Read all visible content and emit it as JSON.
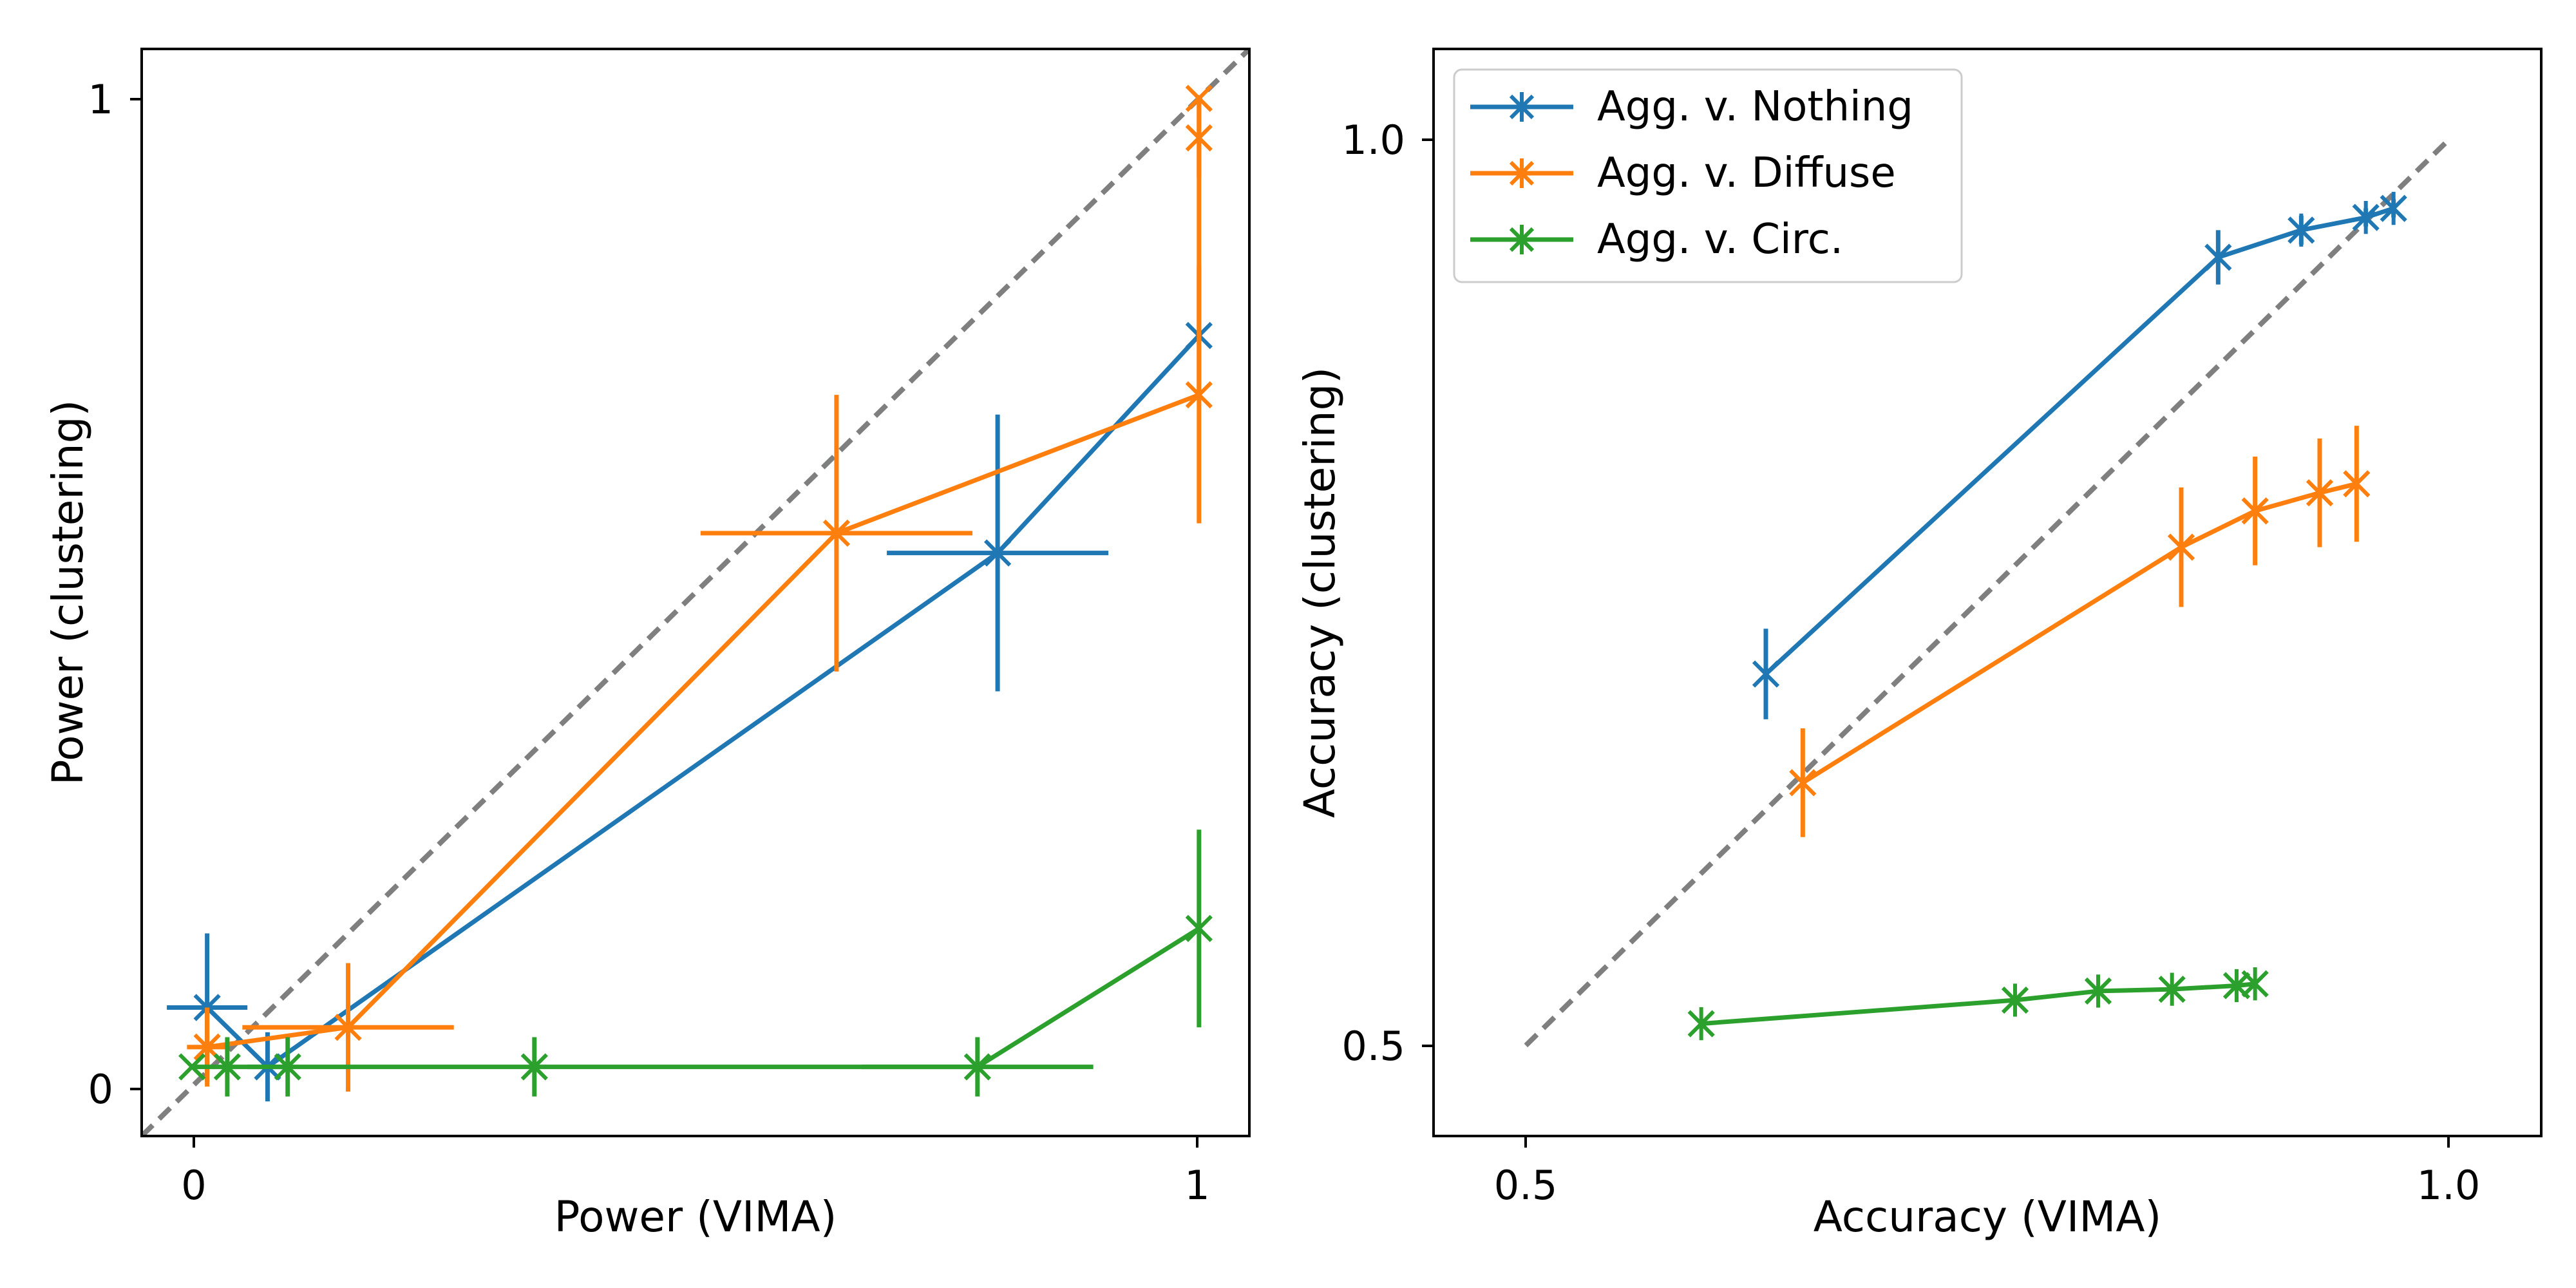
{
  "chart_data": [
    {
      "type": "line",
      "xlabel": "Power (VIMA)",
      "ylabel": "Power (clustering)",
      "xlim": [
        -0.05,
        1.05
      ],
      "ylim": [
        -0.05,
        1.05
      ],
      "xticks": [
        0,
        1
      ],
      "xtick_labels": [
        "0",
        "1"
      ],
      "yticks": [
        0,
        1
      ],
      "ytick_labels": [
        "0",
        "1"
      ],
      "grid": false,
      "reference_line": "y = x (dashed gray)",
      "series": [
        {
          "color": "#1f77b4",
          "points": [
            {
              "x": 0.015,
              "y": 0.08,
              "xerr": 0.04,
              "yerr": 0.075
            },
            {
              "x": 0.075,
              "y": 0.02,
              "xerr": 0.02,
              "yerr": 0.035
            },
            {
              "x": 0.8,
              "y": 0.54,
              "xerr": 0.11,
              "yerr": 0.14
            },
            {
              "x": 1.0,
              "y": 0.76,
              "xerr": 0,
              "yerr": 0
            }
          ]
        },
        {
          "color": "#ff7f0e",
          "points": [
            {
              "x": 0.015,
              "y": 0.04,
              "xerr": 0.02,
              "yerr": 0.04
            },
            {
              "x": 0.155,
              "y": 0.06,
              "xerr": 0.105,
              "yerr": 0.065
            },
            {
              "x": 0.64,
              "y": 0.56,
              "xerr": 0.135,
              "yerr": 0.14
            },
            {
              "x": 1.0,
              "y": 0.7,
              "xerr": 0,
              "yerr": 0.13
            },
            {
              "x": 1.0,
              "y": 0.96,
              "xerr": 0,
              "yerr": 0.04
            },
            {
              "x": 1.0,
              "y": 1.0,
              "xerr": 0,
              "yerr": 0
            }
          ]
        },
        {
          "color": "#2ca02c",
          "points": [
            {
              "x": 0.0,
              "y": 0.02,
              "xerr": 0,
              "yerr": 0
            },
            {
              "x": 0.035,
              "y": 0.02,
              "xerr": 0,
              "yerr": 0.03
            },
            {
              "x": 0.095,
              "y": 0.02,
              "xerr": 0,
              "yerr": 0.03
            },
            {
              "x": 0.34,
              "y": 0.02,
              "xerr": 0,
              "yerr": 0.03
            },
            {
              "x": 0.78,
              "y": 0.02,
              "xerr": 0.115,
              "yerr": 0.03
            },
            {
              "x": 1.0,
              "y": 0.16,
              "xerr": 0,
              "yerr": 0.1
            }
          ]
        }
      ]
    },
    {
      "type": "line",
      "xlabel": "Accuracy (VIMA)",
      "ylabel": "Accuracy (clustering)",
      "xlim": [
        0.45,
        1.05
      ],
      "ylim": [
        0.45,
        1.05
      ],
      "xticks": [
        0.5,
        1.0
      ],
      "xtick_labels": [
        "0.5",
        "1.0"
      ],
      "yticks": [
        0.5,
        1.0
      ],
      "ytick_labels": [
        "0.5",
        "1.0"
      ],
      "grid": false,
      "reference_line": "y = x (dashed gray)",
      "legend": {
        "position": "upper-left"
      },
      "series": [
        {
          "name": "Agg. v. Nothing",
          "color": "#1f77b4",
          "points": [
            {
              "x": 0.63,
              "y": 0.705,
              "xerr": 0,
              "yerr": 0.025
            },
            {
              "x": 0.875,
              "y": 0.935,
              "xerr": 0,
              "yerr": 0.015
            },
            {
              "x": 0.92,
              "y": 0.95,
              "xerr": 0,
              "yerr": 0.008
            },
            {
              "x": 0.955,
              "y": 0.957,
              "xerr": 0,
              "yerr": 0.005
            },
            {
              "x": 0.97,
              "y": 0.962,
              "xerr": 0,
              "yerr": 0.005
            }
          ]
        },
        {
          "name": "Agg. v. Diffuse",
          "color": "#ff7f0e",
          "points": [
            {
              "x": 0.65,
              "y": 0.645,
              "xerr": 0,
              "yerr": 0.03
            },
            {
              "x": 0.855,
              "y": 0.775,
              "xerr": 0,
              "yerr": 0.033
            },
            {
              "x": 0.895,
              "y": 0.795,
              "xerr": 0,
              "yerr": 0.03
            },
            {
              "x": 0.93,
              "y": 0.805,
              "xerr": 0,
              "yerr": 0.03
            },
            {
              "x": 0.95,
              "y": 0.81,
              "xerr": 0,
              "yerr": 0.032
            }
          ]
        },
        {
          "name": "Agg. v. Circ.",
          "color": "#2ca02c",
          "points": [
            {
              "x": 0.595,
              "y": 0.512,
              "xerr": 0,
              "yerr": 0
            },
            {
              "x": 0.765,
              "y": 0.525,
              "xerr": 0,
              "yerr": 0
            },
            {
              "x": 0.81,
              "y": 0.53,
              "xerr": 0,
              "yerr": 0
            },
            {
              "x": 0.85,
              "y": 0.531,
              "xerr": 0,
              "yerr": 0
            },
            {
              "x": 0.885,
              "y": 0.533,
              "xerr": 0,
              "yerr": 0
            },
            {
              "x": 0.895,
              "y": 0.534,
              "xerr": 0,
              "yerr": 0
            }
          ]
        }
      ]
    }
  ]
}
